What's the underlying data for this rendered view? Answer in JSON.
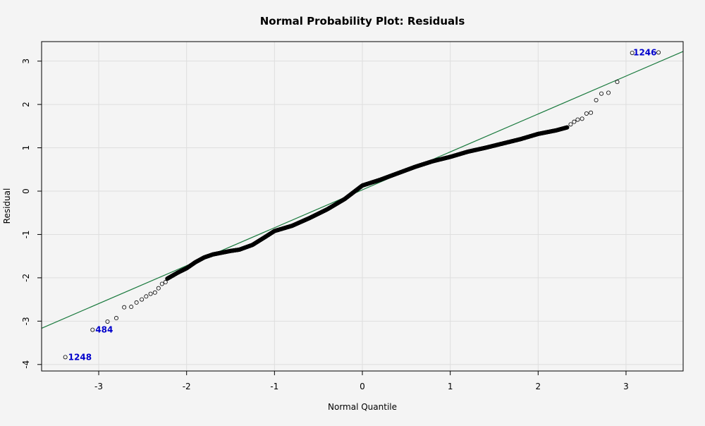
{
  "chart_data": {
    "type": "scatter",
    "title": "Normal Probability Plot: Residuals",
    "xlabel": "Normal Quantile",
    "ylabel": "Residual",
    "xlim": [
      -3.65,
      3.65
    ],
    "ylim": [
      -4.15,
      3.45
    ],
    "xticks": [
      -3,
      -2,
      -1,
      0,
      1,
      2,
      3
    ],
    "yticks": [
      -4,
      -3,
      -2,
      -1,
      0,
      1,
      2,
      3
    ],
    "grid": true,
    "reference_line": {
      "intercept": 0.03,
      "slope": 0.875,
      "color": "#1a7a3e"
    },
    "point_color": "#000000",
    "annotation_color": "#0000cc",
    "annotations": [
      {
        "label": "1246",
        "x": 3.37,
        "y": 3.2
      },
      {
        "label": "484",
        "x": -3.07,
        "y": -3.2
      },
      {
        "label": "1248",
        "x": -3.38,
        "y": -3.83
      }
    ],
    "tail_points": [
      {
        "x": -3.38,
        "y": -3.83
      },
      {
        "x": -3.07,
        "y": -3.2
      },
      {
        "x": -2.9,
        "y": -3.01
      },
      {
        "x": -2.8,
        "y": -2.93
      },
      {
        "x": -2.71,
        "y": -2.68
      },
      {
        "x": -2.63,
        "y": -2.67
      },
      {
        "x": -2.57,
        "y": -2.57
      },
      {
        "x": -2.51,
        "y": -2.5
      },
      {
        "x": -2.46,
        "y": -2.43
      },
      {
        "x": -2.41,
        "y": -2.37
      },
      {
        "x": -2.36,
        "y": -2.34
      },
      {
        "x": -2.32,
        "y": -2.24
      },
      {
        "x": -2.28,
        "y": -2.14
      },
      {
        "x": -2.24,
        "y": -2.1
      },
      {
        "x": 2.37,
        "y": 1.54
      },
      {
        "x": 2.41,
        "y": 1.6
      },
      {
        "x": 2.45,
        "y": 1.65
      },
      {
        "x": 2.5,
        "y": 1.67
      },
      {
        "x": 2.55,
        "y": 1.79
      },
      {
        "x": 2.6,
        "y": 1.81
      },
      {
        "x": 2.66,
        "y": 2.1
      },
      {
        "x": 2.72,
        "y": 2.25
      },
      {
        "x": 2.8,
        "y": 2.27
      },
      {
        "x": 2.9,
        "y": 2.52
      },
      {
        "x": 3.07,
        "y": 3.19
      },
      {
        "x": 3.37,
        "y": 3.2
      }
    ],
    "body_curve": {
      "x_range": [
        -2.22,
        2.33
      ],
      "count": 1230,
      "knots_x": [
        -2.22,
        -2.1,
        -2.0,
        -1.9,
        -1.8,
        -1.7,
        -1.5,
        -1.4,
        -1.25,
        -1.1,
        -1.0,
        -0.8,
        -0.6,
        -0.4,
        -0.2,
        0.0,
        0.2,
        0.4,
        0.6,
        0.8,
        1.0,
        1.2,
        1.4,
        1.6,
        1.8,
        2.0,
        2.2,
        2.33
      ],
      "knots_y": [
        -2.02,
        -1.88,
        -1.78,
        -1.64,
        -1.53,
        -1.46,
        -1.38,
        -1.35,
        -1.24,
        -1.05,
        -0.92,
        -0.8,
        -0.62,
        -0.42,
        -0.18,
        0.13,
        0.26,
        0.41,
        0.56,
        0.69,
        0.79,
        0.91,
        1.0,
        1.1,
        1.2,
        1.32,
        1.4,
        1.47
      ]
    }
  }
}
